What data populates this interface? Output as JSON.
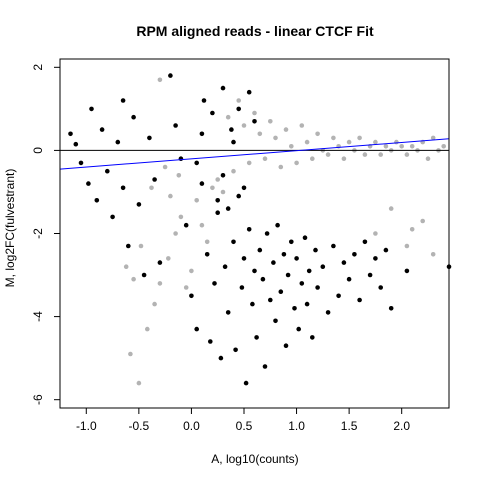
{
  "chart_data": {
    "type": "scatter",
    "title": "RPM aligned reads - linear CTCF Fit",
    "xlabel": "A, log10(counts)",
    "ylabel": "M, log2FC(fulvestrant)",
    "xlim": [
      -1.25,
      2.45
    ],
    "ylim": [
      -6.2,
      2.2
    ],
    "x_ticks": [
      -1.0,
      -0.5,
      0.0,
      0.5,
      1.0,
      1.5,
      2.0
    ],
    "x_tick_labels": [
      "-1.0",
      "-0.5",
      "0.0",
      "0.5",
      "1.0",
      "1.5",
      "2.0"
    ],
    "y_ticks": [
      2,
      0,
      -2,
      -4,
      -6
    ],
    "y_tick_labels": [
      "2",
      "0",
      "-2",
      "-4",
      "-6"
    ],
    "grid": false,
    "colors": {
      "gray_points": "#b3b3b3",
      "black_points": "#000000",
      "fit_line": "#0000ff",
      "zero_line": "#000000"
    },
    "reference_line": {
      "y": 0
    },
    "fit_line": {
      "x": [
        -1.25,
        2.45
      ],
      "y": [
        -0.45,
        0.28
      ]
    },
    "series": [
      {
        "color": "gray",
        "points": [
          [
            -0.62,
            -2.8
          ],
          [
            -0.55,
            -3.1
          ],
          [
            -0.48,
            -2.3
          ],
          [
            -0.42,
            -4.3
          ],
          [
            -0.35,
            -3.7
          ],
          [
            -0.3,
            -3.2
          ],
          [
            -0.22,
            -2.6
          ],
          [
            -0.15,
            -2.0
          ],
          [
            -0.1,
            -1.6
          ],
          [
            -0.05,
            -3.3
          ],
          [
            0.0,
            -2.9
          ],
          [
            0.05,
            -1.2
          ],
          [
            -0.25,
            -0.4
          ],
          [
            -0.38,
            -0.9
          ],
          [
            -0.5,
            -5.6
          ],
          [
            -0.58,
            -4.9
          ],
          [
            -0.2,
            -1.1
          ],
          [
            -0.12,
            -0.6
          ],
          [
            -0.3,
            1.7
          ],
          [
            0.1,
            -1.8
          ],
          [
            0.15,
            -2.2
          ],
          [
            0.2,
            -0.9
          ],
          [
            0.25,
            -0.7
          ],
          [
            0.3,
            -1.0
          ],
          [
            0.35,
            0.8
          ],
          [
            0.4,
            -0.5
          ],
          [
            0.45,
            1.2
          ],
          [
            0.5,
            0.6
          ],
          [
            0.55,
            -0.3
          ],
          [
            0.6,
            0.9
          ],
          [
            0.65,
            0.4
          ],
          [
            0.7,
            -0.2
          ],
          [
            0.75,
            0.7
          ],
          [
            0.8,
            0.3
          ],
          [
            0.85,
            -0.4
          ],
          [
            0.9,
            0.5
          ],
          [
            0.95,
            0.1
          ],
          [
            1.0,
            -0.3
          ],
          [
            1.05,
            0.6
          ],
          [
            1.1,
            0.2
          ],
          [
            1.15,
            -0.2
          ],
          [
            1.2,
            0.4
          ],
          [
            1.25,
            0.0
          ],
          [
            1.3,
            -0.1
          ],
          [
            1.35,
            0.3
          ],
          [
            1.4,
            0.1
          ],
          [
            1.45,
            -0.2
          ],
          [
            1.5,
            0.2
          ],
          [
            1.55,
            0.0
          ],
          [
            1.6,
            0.3
          ],
          [
            1.65,
            -0.1
          ],
          [
            1.7,
            0.1
          ],
          [
            1.75,
            0.2
          ],
          [
            1.8,
            -0.1
          ],
          [
            1.85,
            0.1
          ],
          [
            1.9,
            0.0
          ],
          [
            1.95,
            0.2
          ],
          [
            2.0,
            0.1
          ],
          [
            2.05,
            -0.1
          ],
          [
            2.1,
            0.1
          ],
          [
            2.15,
            0.0
          ],
          [
            2.2,
            0.2
          ],
          [
            2.25,
            -0.2
          ],
          [
            2.3,
            0.3
          ],
          [
            2.35,
            0.0
          ],
          [
            2.4,
            0.1
          ],
          [
            1.9,
            -1.4
          ],
          [
            2.1,
            -1.9
          ],
          [
            2.05,
            -2.3
          ],
          [
            2.2,
            -1.7
          ],
          [
            2.3,
            -2.5
          ],
          [
            1.75,
            -2.0
          ]
        ]
      },
      {
        "color": "black",
        "points": [
          [
            -1.15,
            0.4
          ],
          [
            -1.1,
            0.15
          ],
          [
            -1.05,
            -0.3
          ],
          [
            -0.98,
            -0.8
          ],
          [
            -0.95,
            1.0
          ],
          [
            -0.9,
            -1.2
          ],
          [
            -0.85,
            0.5
          ],
          [
            -0.8,
            -0.5
          ],
          [
            -0.75,
            -1.6
          ],
          [
            -0.7,
            0.2
          ],
          [
            -0.65,
            -0.9
          ],
          [
            -0.6,
            -2.3
          ],
          [
            -0.55,
            0.8
          ],
          [
            -0.5,
            -1.3
          ],
          [
            -0.45,
            -3.0
          ],
          [
            -0.4,
            0.3
          ],
          [
            -0.35,
            -0.7
          ],
          [
            -0.3,
            -2.7
          ],
          [
            -0.2,
            1.8
          ],
          [
            -0.15,
            0.6
          ],
          [
            -0.1,
            -0.2
          ],
          [
            -0.05,
            -1.8
          ],
          [
            0.0,
            -3.5
          ],
          [
            0.05,
            -4.3
          ],
          [
            0.1,
            -0.8
          ],
          [
            0.12,
            1.2
          ],
          [
            0.15,
            -2.5
          ],
          [
            0.18,
            -4.6
          ],
          [
            0.2,
            0.9
          ],
          [
            0.22,
            -3.2
          ],
          [
            0.25,
            -1.5
          ],
          [
            0.28,
            -5.0
          ],
          [
            0.3,
            1.5
          ],
          [
            0.32,
            -2.8
          ],
          [
            0.35,
            -3.9
          ],
          [
            0.38,
            0.5
          ],
          [
            0.4,
            -2.2
          ],
          [
            0.42,
            -4.8
          ],
          [
            0.45,
            1.0
          ],
          [
            0.48,
            -3.3
          ],
          [
            0.5,
            -2.6
          ],
          [
            0.52,
            -5.6
          ],
          [
            0.55,
            -1.9
          ],
          [
            0.58,
            -3.7
          ],
          [
            0.6,
            -2.9
          ],
          [
            0.62,
            -4.5
          ],
          [
            0.65,
            -2.4
          ],
          [
            0.68,
            -3.1
          ],
          [
            0.7,
            -5.2
          ],
          [
            0.72,
            -2.0
          ],
          [
            0.75,
            -3.6
          ],
          [
            0.78,
            -2.7
          ],
          [
            0.8,
            -4.1
          ],
          [
            0.82,
            -1.8
          ],
          [
            0.85,
            -3.4
          ],
          [
            0.88,
            -2.5
          ],
          [
            0.9,
            -4.7
          ],
          [
            0.92,
            -3.0
          ],
          [
            0.95,
            -2.2
          ],
          [
            0.98,
            -3.8
          ],
          [
            1.0,
            -2.6
          ],
          [
            1.02,
            -4.3
          ],
          [
            1.05,
            -3.2
          ],
          [
            1.08,
            -2.1
          ],
          [
            1.1,
            -3.7
          ],
          [
            1.12,
            -2.9
          ],
          [
            1.15,
            -4.5
          ],
          [
            1.18,
            -2.4
          ],
          [
            1.2,
            -3.3
          ],
          [
            1.25,
            -2.8
          ],
          [
            1.3,
            -3.9
          ],
          [
            1.35,
            -2.3
          ],
          [
            1.4,
            -3.5
          ],
          [
            1.45,
            -2.7
          ],
          [
            1.5,
            -3.1
          ],
          [
            1.55,
            -2.5
          ],
          [
            1.6,
            -3.6
          ],
          [
            1.65,
            -2.2
          ],
          [
            1.7,
            -3.0
          ],
          [
            1.75,
            -2.6
          ],
          [
            1.8,
            -3.3
          ],
          [
            1.85,
            -2.4
          ],
          [
            1.9,
            -3.8
          ],
          [
            2.05,
            -2.9
          ],
          [
            2.45,
            -2.8
          ],
          [
            0.05,
            -0.3
          ],
          [
            0.1,
            0.4
          ],
          [
            0.3,
            -0.6
          ],
          [
            0.4,
            0.2
          ],
          [
            0.5,
            -0.9
          ],
          [
            0.55,
            1.4
          ],
          [
            0.6,
            0.7
          ],
          [
            0.45,
            -1.1
          ],
          [
            0.35,
            -1.4
          ],
          [
            0.25,
            -1.2
          ],
          [
            -0.65,
            1.2
          ]
        ]
      }
    ]
  }
}
